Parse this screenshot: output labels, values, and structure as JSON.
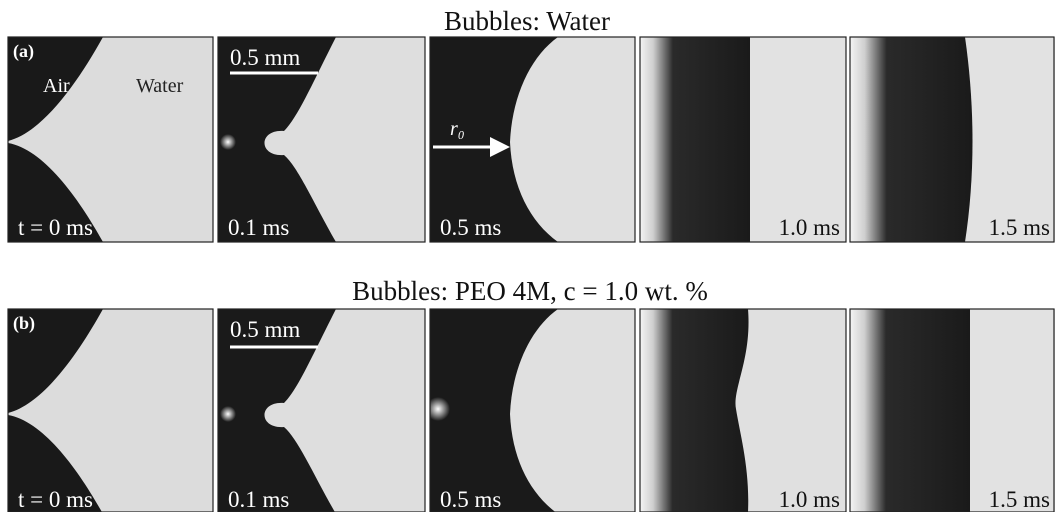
{
  "rows": [
    {
      "title": "Bubbles: Water",
      "label": "(a)",
      "scale_bar": "0.5 mm",
      "air_label": "Air",
      "water_label": "Water",
      "radius_label": "r₀",
      "panels": [
        "t = 0 ms",
        "0.1 ms",
        "0.5 ms",
        "1.0 ms",
        "1.5 ms"
      ]
    },
    {
      "title": "Bubbles: PEO 4M, c = 1.0 wt. %",
      "label": "(b)",
      "scale_bar": "0.5 mm",
      "panels": [
        "t = 0 ms",
        "0.1 ms",
        "0.5 ms",
        "1.0 ms",
        "1.5 ms"
      ]
    }
  ]
}
